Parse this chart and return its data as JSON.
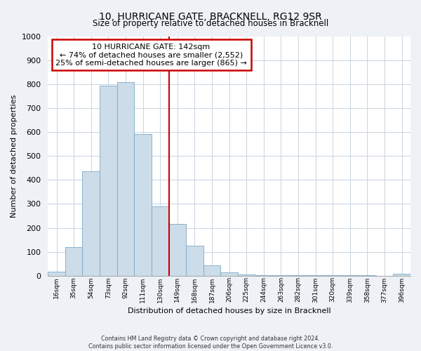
{
  "title": "10, HURRICANE GATE, BRACKNELL, RG12 9SR",
  "subtitle": "Size of property relative to detached houses in Bracknell",
  "xlabel": "Distribution of detached houses by size in Bracknell",
  "ylabel": "Number of detached properties",
  "bar_labels": [
    "16sqm",
    "35sqm",
    "54sqm",
    "73sqm",
    "92sqm",
    "111sqm",
    "130sqm",
    "149sqm",
    "168sqm",
    "187sqm",
    "206sqm",
    "225sqm",
    "244sqm",
    "263sqm",
    "282sqm",
    "301sqm",
    "320sqm",
    "339sqm",
    "358sqm",
    "377sqm",
    "396sqm"
  ],
  "bar_values": [
    18,
    120,
    435,
    793,
    808,
    590,
    290,
    215,
    125,
    42,
    13,
    5,
    3,
    2,
    2,
    2,
    1,
    1,
    1,
    0,
    7
  ],
  "bar_color": "#ccdce8",
  "bar_edge_color": "#7aaac8",
  "marker_label": "10 HURRICANE GATE: 142sqm",
  "marker_smaller": "← 74% of detached houses are smaller (2,552)",
  "marker_larger": "25% of semi-detached houses are larger (865) →",
  "marker_line_color": "#cc0000",
  "annotation_box_color": "#ffffff",
  "annotation_box_edge": "#cc0000",
  "ylim": [
    0,
    1000
  ],
  "yticks": [
    0,
    100,
    200,
    300,
    400,
    500,
    600,
    700,
    800,
    900,
    1000
  ],
  "footer_line1": "Contains HM Land Registry data © Crown copyright and database right 2024.",
  "footer_line2": "Contains public sector information licensed under the Open Government Licence v3.0.",
  "bg_color": "#eef2f7",
  "plot_bg_color": "#ffffff",
  "grid_color": "#c8d4e0"
}
